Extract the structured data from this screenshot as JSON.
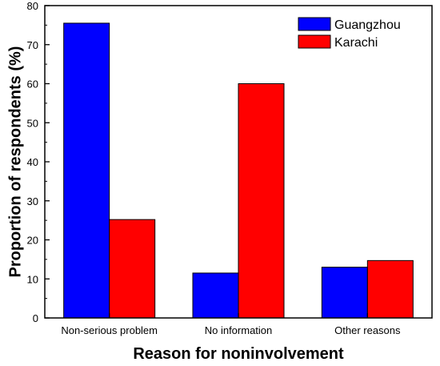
{
  "chart_data": {
    "type": "bar",
    "categories": [
      "Non-serious problem",
      "No information",
      "Other reasons"
    ],
    "series": [
      {
        "name": "Guangzhou",
        "values": [
          75.5,
          11.5,
          13.0
        ],
        "color": "#0000ff"
      },
      {
        "name": "Karachi",
        "values": [
          25.2,
          60.0,
          14.7
        ],
        "color": "#ff0000"
      }
    ],
    "xlabel": "Reason for noninvolvement",
    "ylabel": "Proportion of respondents (%)",
    "ylim": [
      0,
      80
    ],
    "yticks": [
      0,
      10,
      20,
      30,
      40,
      50,
      60,
      70,
      80
    ],
    "grid": false,
    "legend_position": "top-right"
  }
}
